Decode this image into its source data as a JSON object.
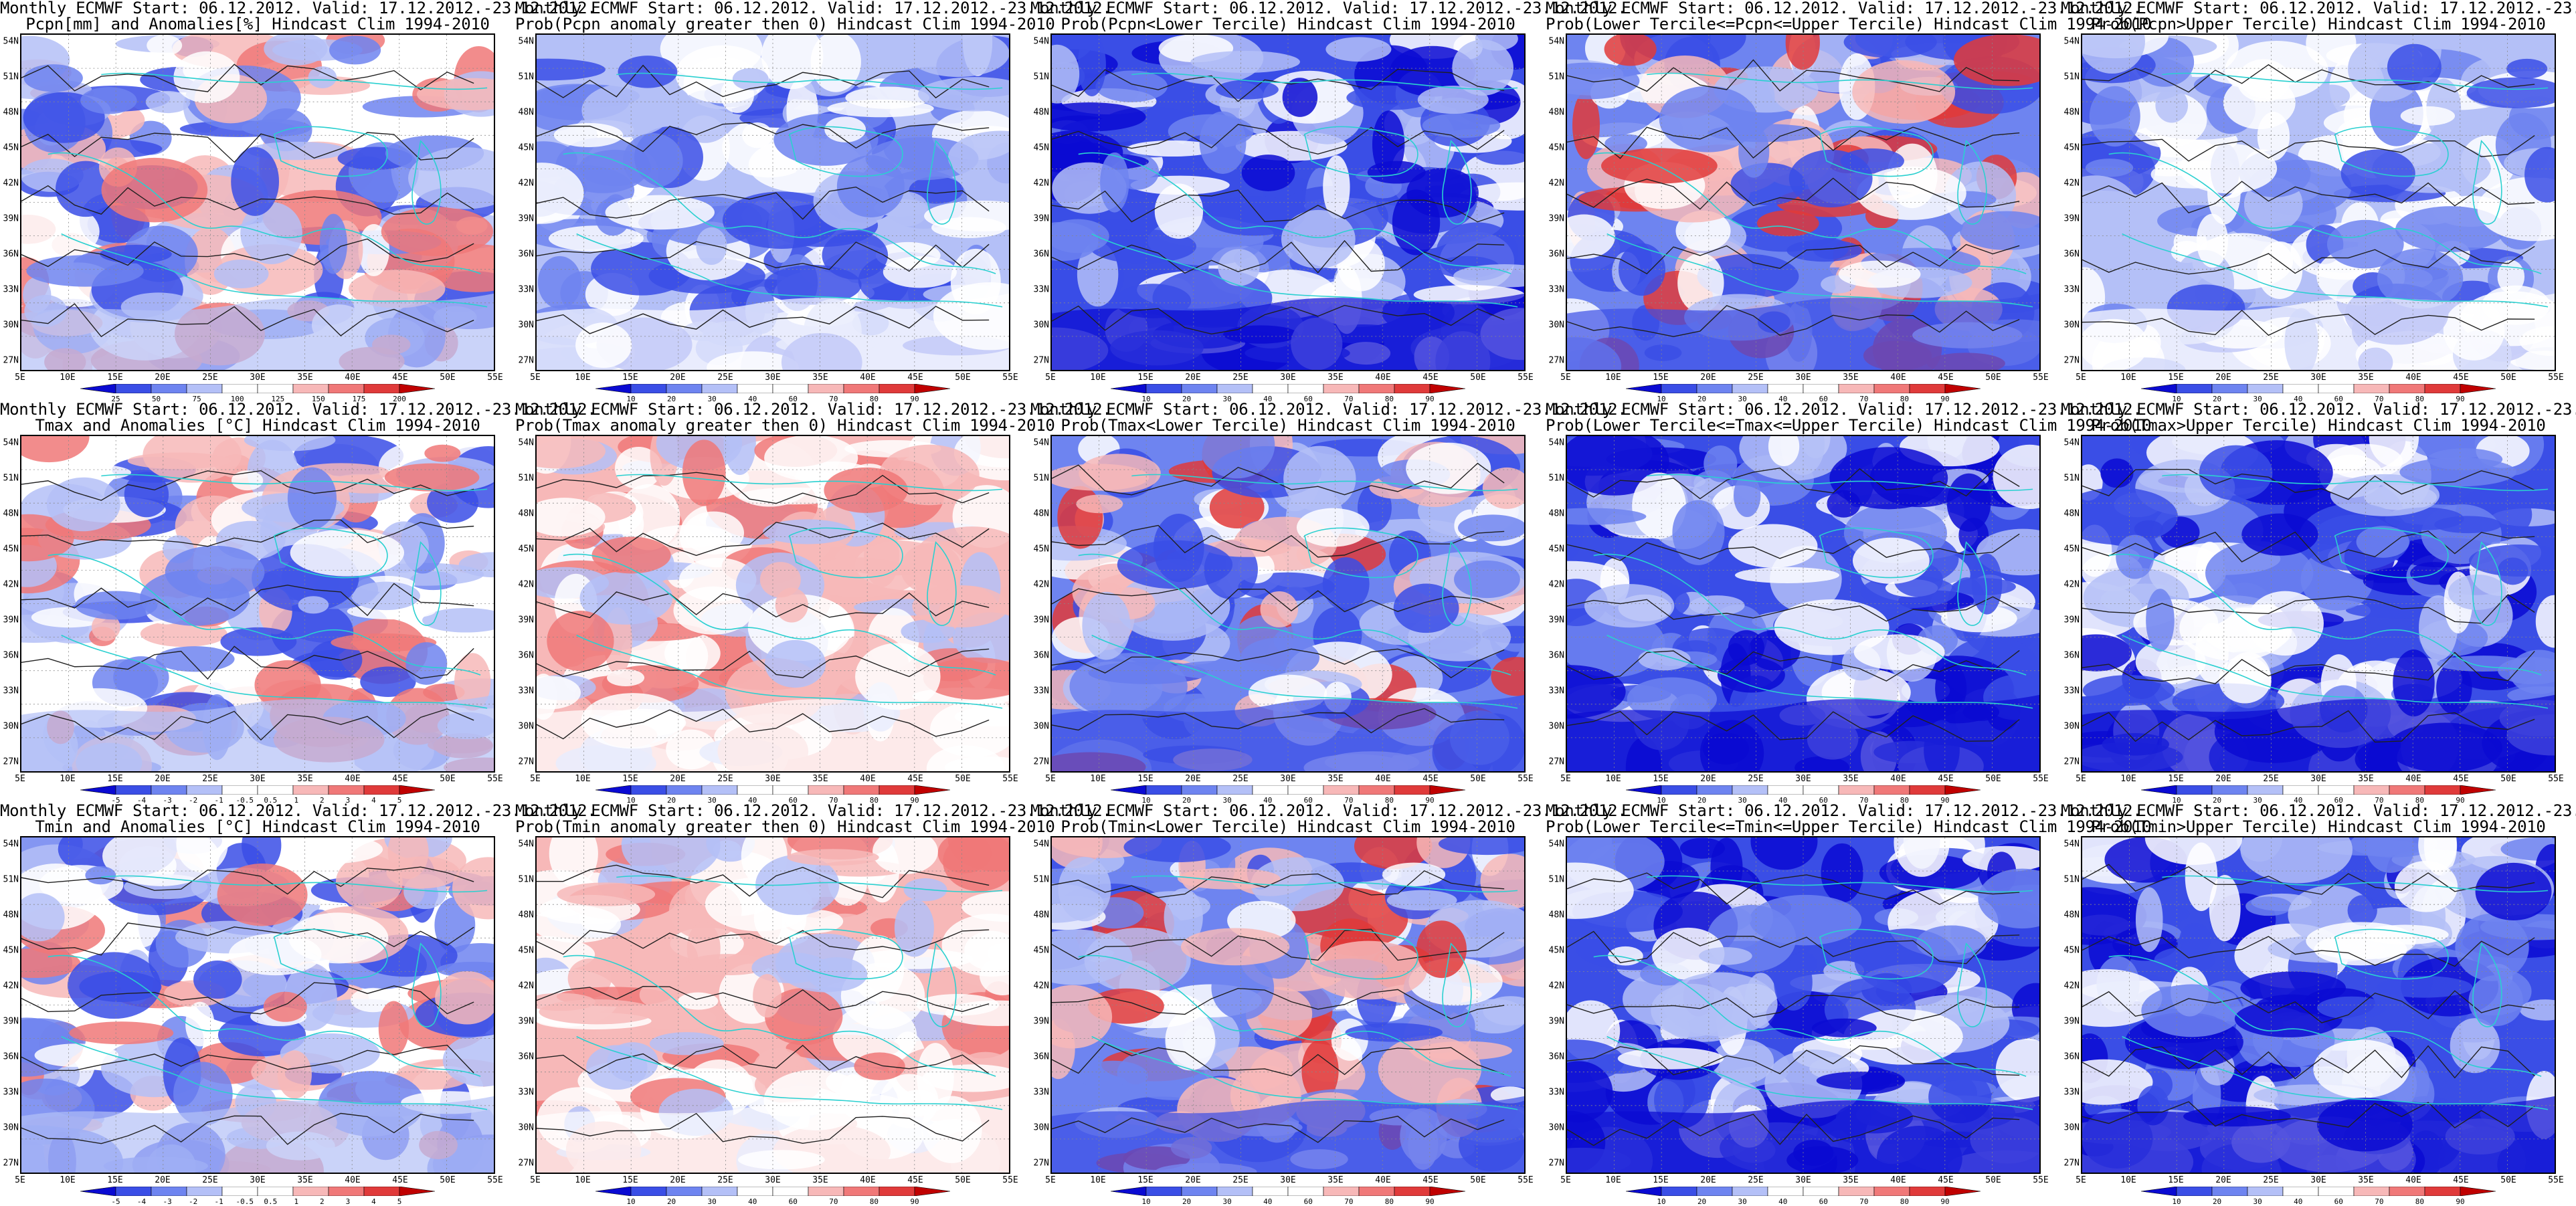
{
  "title_line1": "Monthly ECMWF Start: 06.12.2012. Valid: 17.12.2012.-23.12.2012.",
  "lat_labels": [
    "54N",
    "51N",
    "48N",
    "45N",
    "42N",
    "39N",
    "36N",
    "33N",
    "30N",
    "27N"
  ],
  "lon_labels": [
    "5E",
    "10E",
    "15E",
    "20E",
    "25E",
    "30E",
    "35E",
    "40E",
    "45E",
    "50E",
    "55E"
  ],
  "colors": {
    "dark_blue": "#0a0ad2",
    "blue": "#3a4ee6",
    "mid_blue": "#6e84f0",
    "light_blue": "#b4c0f7",
    "white": "#ffffff",
    "light_red": "#f7b8b8",
    "mid_red": "#f07878",
    "red": "#e03a3a",
    "dark_red": "#c00000",
    "coast": "#2ad0d0",
    "contour": "#202020"
  },
  "panels": [
    {
      "id": "pcpn-anom",
      "title2": "Pcpn[mm] and Anomalies[%] Hindcast Clim 1994-2010",
      "palette": "mixed",
      "cbar_labels": [
        "25",
        "50",
        "75",
        "100",
        "125",
        "150",
        "175",
        "200"
      ]
    },
    {
      "id": "pcpn-prob-pos",
      "title2": "Prob(Pcpn anomaly greater then 0) Hindcast Clim 1994-2010",
      "palette": "wblue",
      "cbar_labels": [
        "10",
        "20",
        "30",
        "40",
        "60",
        "70",
        "80",
        "90"
      ]
    },
    {
      "id": "pcpn-prob-lower",
      "title2": "Prob(Pcpn<Lower Tercile) Hindcast Clim 1994-2010",
      "palette": "blue",
      "cbar_labels": [
        "10",
        "20",
        "30",
        "40",
        "60",
        "70",
        "80",
        "90"
      ]
    },
    {
      "id": "pcpn-prob-middle",
      "title2": "Prob(Lower Tercile<=Pcpn<=Upper Tercile) Hindcast Clim 1994-2010",
      "palette": "bluered",
      "cbar_labels": [
        "10",
        "20",
        "30",
        "40",
        "60",
        "70",
        "80",
        "90"
      ]
    },
    {
      "id": "pcpn-prob-upper",
      "title2": "Prob(Pcpn>Upper Tercile) Hindcast Clim 1994-2010",
      "palette": "wblue",
      "cbar_labels": [
        "10",
        "20",
        "30",
        "40",
        "60",
        "70",
        "80",
        "90"
      ]
    },
    {
      "id": "tmax-anom",
      "title2": "Tmax and Anomalies [°C] Hindcast Clim 1994-2010",
      "palette": "mixed",
      "cbar_labels": [
        "-5",
        "-4",
        "-3",
        "-2",
        "-1",
        "-0.5",
        "0.5",
        "1",
        "2",
        "3",
        "4",
        "5"
      ]
    },
    {
      "id": "tmax-prob-pos",
      "title2": "Prob(Tmax anomaly greater then 0) Hindcast Clim 1994-2010",
      "palette": "redish",
      "cbar_labels": [
        "10",
        "20",
        "30",
        "40",
        "60",
        "70",
        "80",
        "90"
      ]
    },
    {
      "id": "tmax-prob-lower",
      "title2": "Prob(Tmax<Lower Tercile) Hindcast Clim 1994-2010",
      "palette": "bluered",
      "cbar_labels": [
        "10",
        "20",
        "30",
        "40",
        "60",
        "70",
        "80",
        "90"
      ]
    },
    {
      "id": "tmax-prob-middle",
      "title2": "Prob(Lower Tercile<=Tmax<=Upper Tercile) Hindcast Clim 1994-2010",
      "palette": "blue",
      "cbar_labels": [
        "10",
        "20",
        "30",
        "40",
        "60",
        "70",
        "80",
        "90"
      ]
    },
    {
      "id": "tmax-prob-upper",
      "title2": "Prob(Tmax>Upper Tercile) Hindcast Clim 1994-2010",
      "palette": "blue",
      "cbar_labels": [
        "10",
        "20",
        "30",
        "40",
        "60",
        "70",
        "80",
        "90"
      ]
    },
    {
      "id": "tmin-anom",
      "title2": "Tmin and Anomalies [°C] Hindcast Clim 1994-2010",
      "palette": "mixed",
      "cbar_labels": [
        "-5",
        "-4",
        "-3",
        "-2",
        "-1",
        "-0.5",
        "0.5",
        "1",
        "2",
        "3",
        "4",
        "5"
      ]
    },
    {
      "id": "tmin-prob-pos",
      "title2": "Prob(Tmin anomaly greater then 0) Hindcast Clim 1994-2010",
      "palette": "redish",
      "cbar_labels": [
        "10",
        "20",
        "30",
        "40",
        "60",
        "70",
        "80",
        "90"
      ]
    },
    {
      "id": "tmin-prob-lower",
      "title2": "Prob(Tmin<Lower Tercile) Hindcast Clim 1994-2010",
      "palette": "bluered",
      "cbar_labels": [
        "10",
        "20",
        "30",
        "40",
        "60",
        "70",
        "80",
        "90"
      ]
    },
    {
      "id": "tmin-prob-middle",
      "title2": "Prob(Lower Tercile<=Tmin<=Upper Tercile) Hindcast Clim 1994-2010",
      "palette": "blue",
      "cbar_labels": [
        "10",
        "20",
        "30",
        "40",
        "60",
        "70",
        "80",
        "90"
      ]
    },
    {
      "id": "tmin-prob-upper",
      "title2": "Prob(Tmin>Upper Tercile) Hindcast Clim 1994-2010",
      "palette": "blue",
      "cbar_labels": [
        "10",
        "20",
        "30",
        "40",
        "60",
        "70",
        "80",
        "90"
      ]
    }
  ]
}
